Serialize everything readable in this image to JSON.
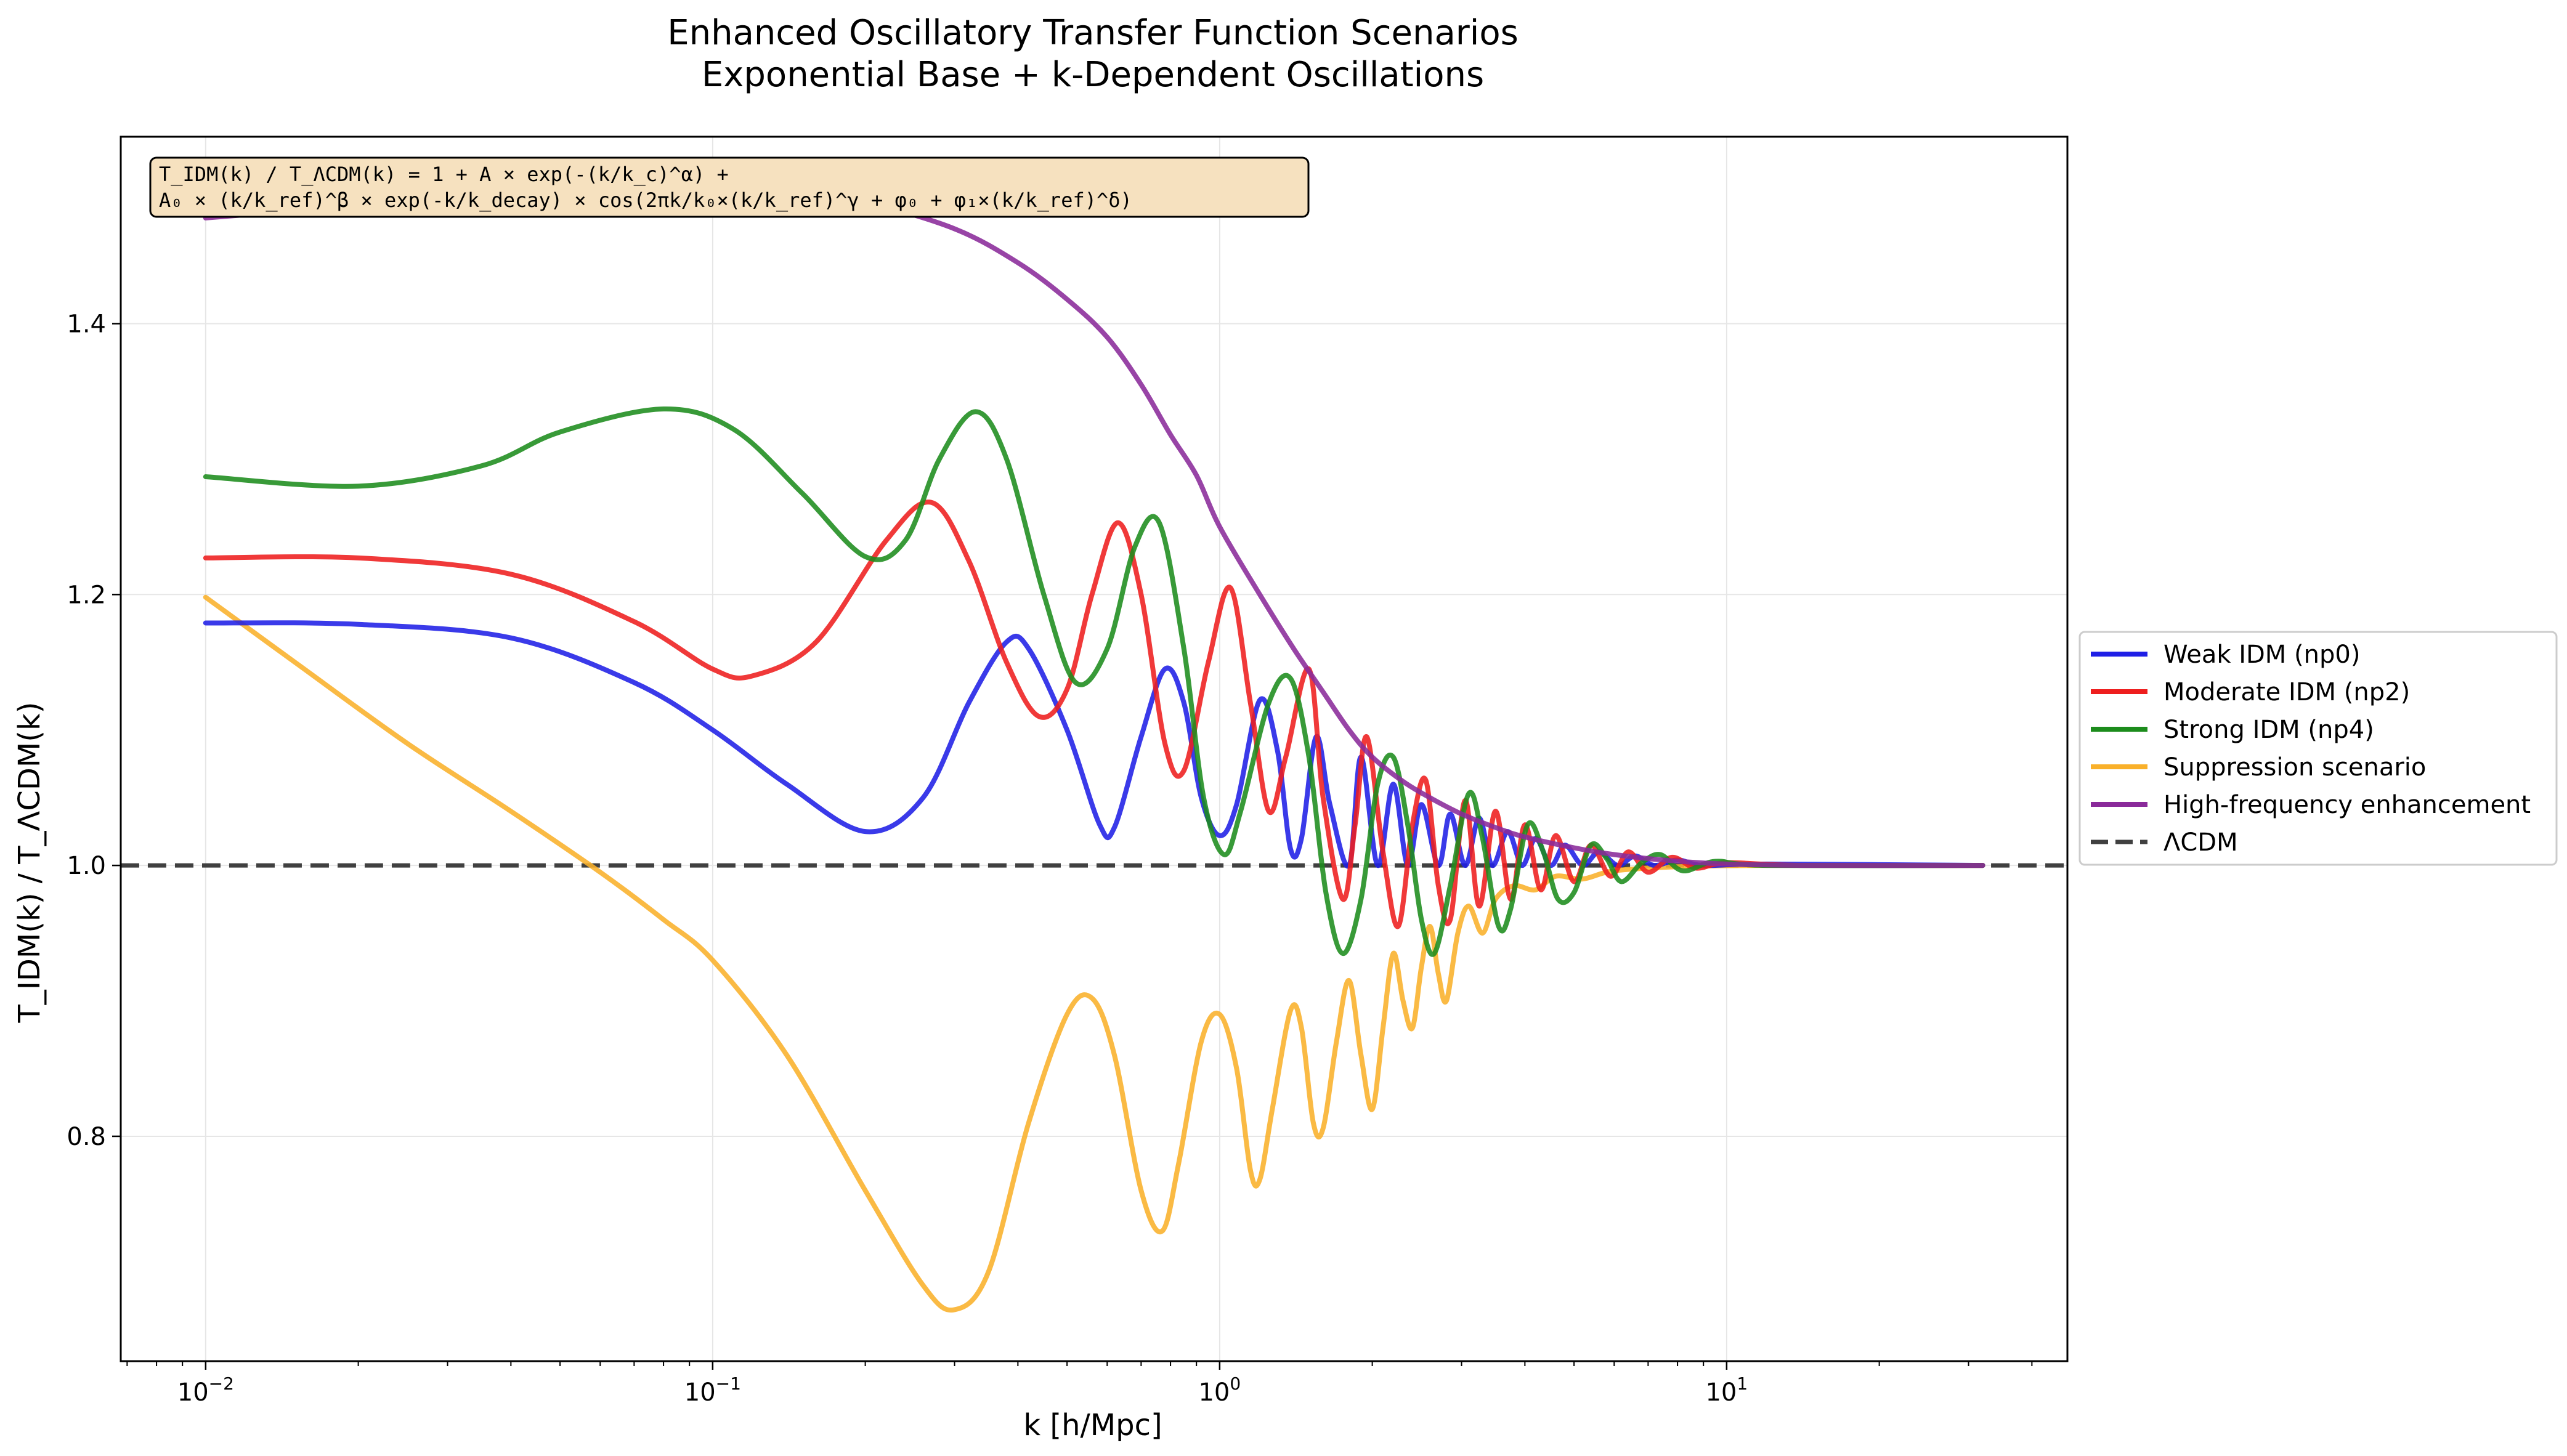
{
  "chart_data": {
    "type": "line",
    "title": "Enhanced Oscillatory Transfer Function Scenarios",
    "subtitle": "Exponential Base + k-Dependent Oscillations",
    "xlabel": "k [h/Mpc]",
    "ylabel": "T_IDM(k) / T_ΛCDM(k)",
    "xscale": "log",
    "xlim": [
      0.0068,
      47
    ],
    "ylim": [
      0.634,
      1.538
    ],
    "xticks": [
      {
        "value": 0.01,
        "base": "10",
        "exp": "−2"
      },
      {
        "value": 0.1,
        "base": "10",
        "exp": "−1"
      },
      {
        "value": 1,
        "base": "10",
        "exp": "0"
      },
      {
        "value": 10,
        "base": "10",
        "exp": "1"
      }
    ],
    "yticks": [
      {
        "value": 0.8,
        "label": "0.8"
      },
      {
        "value": 1.0,
        "label": "1.0"
      },
      {
        "value": 1.2,
        "label": "1.2"
      },
      {
        "value": 1.4,
        "label": "1.4"
      }
    ],
    "grid": true,
    "legend_placement": "outside-right",
    "formula": [
      "T_IDM(k) / T_ΛCDM(k) = 1 + A × exp(-(k/k_c)^α) +",
      "A₀ × (k/k_ref)^β × exp(-k/k_decay) × cos(2πk/k₀×(k/k_ref)^γ + φ₀ + φ₁×(k/k_ref)^δ)"
    ],
    "series": [
      {
        "name": "Weak IDM (np0)",
        "color": "#1f1fe6",
        "points": [
          [
            0.01,
            1.179
          ],
          [
            0.02,
            1.178
          ],
          [
            0.04,
            1.168
          ],
          [
            0.07,
            1.135
          ],
          [
            0.1,
            1.1
          ],
          [
            0.14,
            1.06
          ],
          [
            0.2,
            1.025
          ],
          [
            0.26,
            1.05
          ],
          [
            0.32,
            1.12
          ],
          [
            0.38,
            1.165
          ],
          [
            0.42,
            1.16
          ],
          [
            0.5,
            1.1
          ],
          [
            0.58,
            1.03
          ],
          [
            0.62,
            1.028
          ],
          [
            0.7,
            1.095
          ],
          [
            0.78,
            1.145
          ],
          [
            0.85,
            1.12
          ],
          [
            0.92,
            1.05
          ],
          [
            1.0,
            1.022
          ],
          [
            1.08,
            1.045
          ],
          [
            1.2,
            1.122
          ],
          [
            1.3,
            1.085
          ],
          [
            1.38,
            1.012
          ],
          [
            1.45,
            1.02
          ],
          [
            1.55,
            1.095
          ],
          [
            1.65,
            1.045
          ],
          [
            1.8,
            1.0
          ],
          [
            1.9,
            1.08
          ],
          [
            2.05,
            1.0
          ],
          [
            2.2,
            1.06
          ],
          [
            2.35,
            1.0
          ],
          [
            2.5,
            1.045
          ],
          [
            2.7,
            1.0
          ],
          [
            2.85,
            1.038
          ],
          [
            3.05,
            1.0
          ],
          [
            3.25,
            1.035
          ],
          [
            3.45,
            1.0
          ],
          [
            3.7,
            1.025
          ],
          [
            3.95,
            1.0
          ],
          [
            4.2,
            1.02
          ],
          [
            4.5,
            1.0
          ],
          [
            4.8,
            1.015
          ],
          [
            5.2,
            1.0
          ],
          [
            5.6,
            1.01
          ],
          [
            6.1,
            1.0
          ],
          [
            6.6,
            1.007
          ],
          [
            7.2,
            1.0
          ],
          [
            8.0,
            1.004
          ],
          [
            9.0,
            1.0
          ],
          [
            12,
            1.001
          ],
          [
            32,
            1.0
          ]
        ]
      },
      {
        "name": "Moderate IDM (np2)",
        "color": "#ee1e1e",
        "points": [
          [
            0.01,
            1.227
          ],
          [
            0.02,
            1.227
          ],
          [
            0.04,
            1.215
          ],
          [
            0.07,
            1.18
          ],
          [
            0.1,
            1.145
          ],
          [
            0.12,
            1.14
          ],
          [
            0.16,
            1.165
          ],
          [
            0.22,
            1.24
          ],
          [
            0.27,
            1.268
          ],
          [
            0.32,
            1.225
          ],
          [
            0.38,
            1.15
          ],
          [
            0.44,
            1.11
          ],
          [
            0.5,
            1.13
          ],
          [
            0.56,
            1.2
          ],
          [
            0.63,
            1.253
          ],
          [
            0.7,
            1.2
          ],
          [
            0.78,
            1.09
          ],
          [
            0.85,
            1.07
          ],
          [
            0.95,
            1.15
          ],
          [
            1.05,
            1.205
          ],
          [
            1.15,
            1.12
          ],
          [
            1.25,
            1.04
          ],
          [
            1.35,
            1.08
          ],
          [
            1.5,
            1.145
          ],
          [
            1.6,
            1.05
          ],
          [
            1.75,
            0.975
          ],
          [
            1.85,
            1.03
          ],
          [
            1.95,
            1.095
          ],
          [
            2.1,
            1.01
          ],
          [
            2.25,
            0.955
          ],
          [
            2.4,
            1.03
          ],
          [
            2.55,
            1.063
          ],
          [
            2.7,
            0.985
          ],
          [
            2.85,
            0.96
          ],
          [
            3.05,
            1.048
          ],
          [
            3.25,
            0.97
          ],
          [
            3.5,
            1.04
          ],
          [
            3.75,
            0.975
          ],
          [
            4.0,
            1.03
          ],
          [
            4.3,
            0.982
          ],
          [
            4.6,
            1.022
          ],
          [
            5.0,
            0.988
          ],
          [
            5.4,
            1.015
          ],
          [
            5.9,
            0.992
          ],
          [
            6.4,
            1.01
          ],
          [
            7.0,
            0.995
          ],
          [
            7.8,
            1.006
          ],
          [
            8.7,
            0.998
          ],
          [
            10,
            1.002
          ],
          [
            14,
            1.0
          ],
          [
            32,
            1.0
          ]
        ]
      },
      {
        "name": "Strong IDM (np4)",
        "color": "#1c8c1c",
        "points": [
          [
            0.01,
            1.287
          ],
          [
            0.02,
            1.28
          ],
          [
            0.035,
            1.295
          ],
          [
            0.05,
            1.32
          ],
          [
            0.08,
            1.337
          ],
          [
            0.11,
            1.322
          ],
          [
            0.15,
            1.275
          ],
          [
            0.2,
            1.228
          ],
          [
            0.24,
            1.24
          ],
          [
            0.28,
            1.3
          ],
          [
            0.33,
            1.335
          ],
          [
            0.38,
            1.3
          ],
          [
            0.45,
            1.2
          ],
          [
            0.52,
            1.135
          ],
          [
            0.6,
            1.16
          ],
          [
            0.68,
            1.235
          ],
          [
            0.76,
            1.253
          ],
          [
            0.85,
            1.16
          ],
          [
            0.93,
            1.05
          ],
          [
            1.02,
            1.008
          ],
          [
            1.1,
            1.04
          ],
          [
            1.25,
            1.12
          ],
          [
            1.38,
            1.138
          ],
          [
            1.5,
            1.08
          ],
          [
            1.62,
            0.98
          ],
          [
            1.75,
            0.935
          ],
          [
            1.9,
            0.975
          ],
          [
            2.05,
            1.06
          ],
          [
            2.2,
            1.08
          ],
          [
            2.35,
            1.03
          ],
          [
            2.5,
            0.96
          ],
          [
            2.65,
            0.935
          ],
          [
            2.85,
            0.985
          ],
          [
            3.1,
            1.053
          ],
          [
            3.3,
            1.02
          ],
          [
            3.55,
            0.955
          ],
          [
            3.75,
            0.968
          ],
          [
            4.05,
            1.03
          ],
          [
            4.35,
            1.01
          ],
          [
            4.65,
            0.975
          ],
          [
            5.0,
            0.98
          ],
          [
            5.4,
            1.015
          ],
          [
            5.8,
            1.005
          ],
          [
            6.2,
            0.988
          ],
          [
            6.8,
            1.002
          ],
          [
            7.4,
            1.008
          ],
          [
            8.2,
            0.996
          ],
          [
            9.5,
            1.003
          ],
          [
            12,
            1.0
          ],
          [
            32,
            1.0
          ]
        ]
      },
      {
        "name": "Suppression scenario",
        "color": "#f9b02a",
        "points": [
          [
            0.01,
            1.198
          ],
          [
            0.015,
            1.15
          ],
          [
            0.025,
            1.09
          ],
          [
            0.04,
            1.04
          ],
          [
            0.06,
            0.995
          ],
          [
            0.08,
            0.96
          ],
          [
            0.1,
            0.93
          ],
          [
            0.14,
            0.86
          ],
          [
            0.2,
            0.76
          ],
          [
            0.26,
            0.69
          ],
          [
            0.3,
            0.672
          ],
          [
            0.35,
            0.7
          ],
          [
            0.42,
            0.81
          ],
          [
            0.5,
            0.89
          ],
          [
            0.56,
            0.902
          ],
          [
            0.62,
            0.86
          ],
          [
            0.7,
            0.76
          ],
          [
            0.77,
            0.73
          ],
          [
            0.83,
            0.78
          ],
          [
            0.92,
            0.87
          ],
          [
            1.0,
            0.89
          ],
          [
            1.08,
            0.85
          ],
          [
            1.15,
            0.775
          ],
          [
            1.2,
            0.768
          ],
          [
            1.27,
            0.82
          ],
          [
            1.38,
            0.893
          ],
          [
            1.45,
            0.88
          ],
          [
            1.53,
            0.81
          ],
          [
            1.6,
            0.806
          ],
          [
            1.7,
            0.87
          ],
          [
            1.8,
            0.915
          ],
          [
            1.9,
            0.86
          ],
          [
            2.0,
            0.82
          ],
          [
            2.1,
            0.88
          ],
          [
            2.2,
            0.935
          ],
          [
            2.3,
            0.9
          ],
          [
            2.4,
            0.88
          ],
          [
            2.5,
            0.925
          ],
          [
            2.6,
            0.955
          ],
          [
            2.7,
            0.92
          ],
          [
            2.8,
            0.9
          ],
          [
            2.95,
            0.95
          ],
          [
            3.1,
            0.97
          ],
          [
            3.3,
            0.95
          ],
          [
            3.5,
            0.975
          ],
          [
            3.8,
            0.985
          ],
          [
            4.2,
            0.982
          ],
          [
            4.6,
            0.992
          ],
          [
            5.2,
            0.99
          ],
          [
            6,
            0.996
          ],
          [
            8,
            0.999
          ],
          [
            12,
            1.0
          ],
          [
            32,
            1.0
          ]
        ]
      },
      {
        "name": "High-frequency enhancement",
        "color": "#8a2a9a",
        "points": [
          [
            0.01,
            1.478
          ],
          [
            0.02,
            1.487
          ],
          [
            0.04,
            1.495
          ],
          [
            0.07,
            1.5
          ],
          [
            0.1,
            1.5
          ],
          [
            0.15,
            1.497
          ],
          [
            0.2,
            1.49
          ],
          [
            0.3,
            1.47
          ],
          [
            0.4,
            1.445
          ],
          [
            0.5,
            1.418
          ],
          [
            0.6,
            1.39
          ],
          [
            0.7,
            1.355
          ],
          [
            0.8,
            1.318
          ],
          [
            0.9,
            1.288
          ],
          [
            1.0,
            1.25
          ],
          [
            1.2,
            1.2
          ],
          [
            1.4,
            1.16
          ],
          [
            1.6,
            1.128
          ],
          [
            1.8,
            1.1
          ],
          [
            2.0,
            1.08
          ],
          [
            2.3,
            1.062
          ],
          [
            2.6,
            1.05
          ],
          [
            3.0,
            1.038
          ],
          [
            3.5,
            1.028
          ],
          [
            4.0,
            1.021
          ],
          [
            5.0,
            1.013
          ],
          [
            6.0,
            1.008
          ],
          [
            7.5,
            1.004
          ],
          [
            10,
            1.001
          ],
          [
            15,
            1.0
          ],
          [
            32,
            1.0
          ]
        ]
      },
      {
        "name": "ΛCDM",
        "color": "#404040",
        "dashed": true,
        "points": [
          [
            0.0068,
            1.0
          ],
          [
            47,
            1.0
          ]
        ]
      }
    ]
  }
}
